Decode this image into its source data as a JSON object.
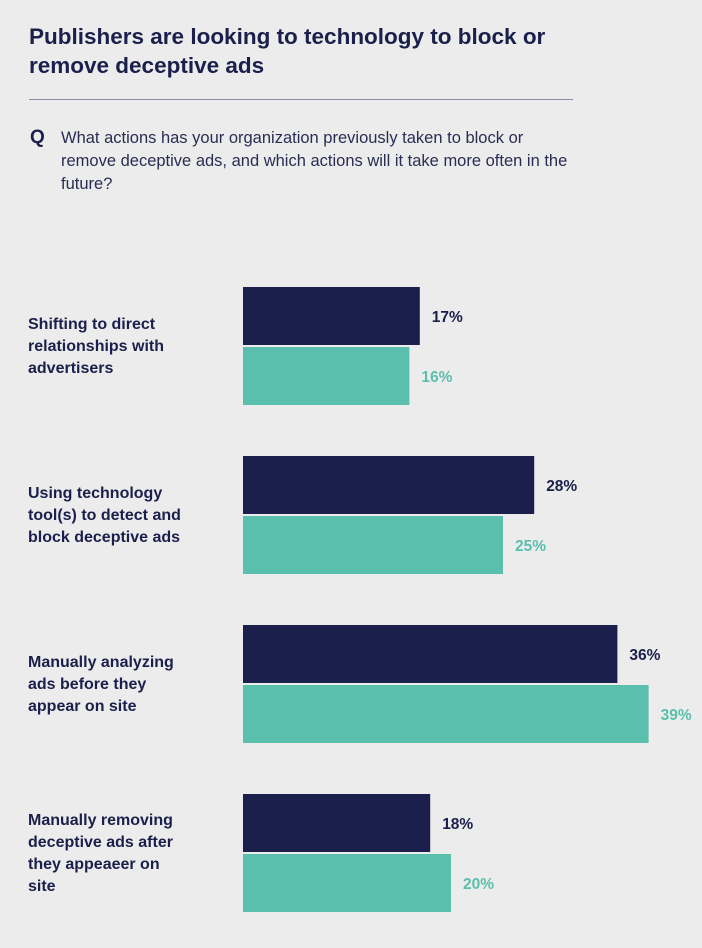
{
  "title": "Publishers are looking to technology to block or remove deceptive ads",
  "question": {
    "marker": "Q",
    "text": "What actions has your organization previously taken to block or remove deceptive ads, and which actions will it take more often in the future?"
  },
  "chart_data": {
    "type": "bar",
    "orientation": "horizontal",
    "categories": [
      [
        "Shifting to direct",
        "relationships with",
        "advertisers"
      ],
      [
        "Using technology",
        "tool(s) to detect and",
        "block deceptive ads"
      ],
      [
        "Manually analyzing",
        "ads before they",
        "appear on site"
      ],
      [
        "Manually removing",
        "deceptive ads after",
        "they appeaeer on",
        "site"
      ]
    ],
    "series": [
      {
        "color": "#1b1f4b",
        "values": [
          17,
          28,
          36,
          18
        ],
        "labels": [
          "17%",
          "28%",
          "36%",
          "18%"
        ]
      },
      {
        "color": "#5bbfad",
        "values": [
          16,
          25,
          39,
          20
        ],
        "labels": [
          "16%",
          "25%",
          "39%",
          "20%"
        ]
      }
    ],
    "xlim": [
      0,
      100
    ],
    "unit": "%"
  }
}
